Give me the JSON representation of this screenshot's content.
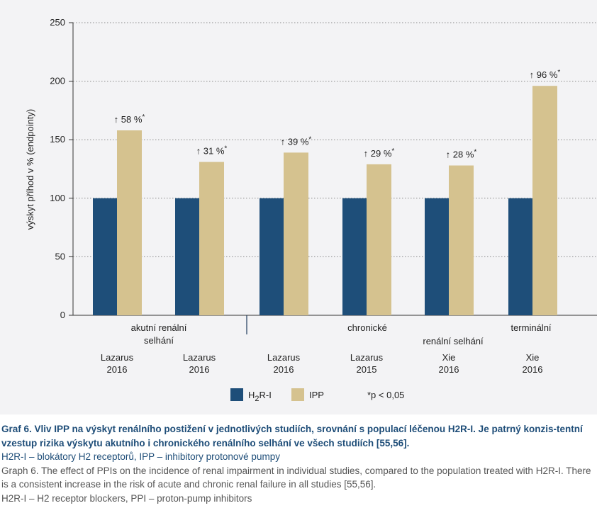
{
  "colors": {
    "h2ri": "#1e4e79",
    "ipp": "#d5c28f",
    "background": "#f3f3f5",
    "caption_title": "#1e4d78",
    "caption_english": "#555555"
  },
  "chart_data": {
    "type": "bar",
    "ylabel": "výskyt příhod v % (endpointy)",
    "ylim": [
      0,
      250
    ],
    "yticks": [
      0,
      50,
      100,
      150,
      200,
      250
    ],
    "grid": "horizontal dotted",
    "categories": [
      {
        "study": "Lazarus",
        "year": "2016"
      },
      {
        "study": "Lazarus",
        "year": "2016"
      },
      {
        "study": "Lazarus",
        "year": "2016"
      },
      {
        "study": "Lazarus",
        "year": "2015"
      },
      {
        "study": "Xie",
        "year": "2016"
      },
      {
        "study": "Xie",
        "year": "2016"
      }
    ],
    "series": [
      {
        "name": "IPP",
        "values": [
          158,
          131,
          139,
          129,
          128,
          196
        ]
      }
    ],
    "reference_values": [
      100,
      100,
      100,
      100,
      100,
      100
    ],
    "data_labels": [
      "58 %",
      "31 %",
      "39 %",
      "29 %",
      "28 %",
      "96 %"
    ],
    "data_label_arrow": "↑",
    "data_label_mark": "*",
    "group_labels": [
      {
        "lines": [
          "akutní renální",
          "selhání"
        ]
      },
      {
        "lines": [
          "chronické"
        ]
      },
      {
        "lines": [
          "renální selhání"
        ]
      },
      {
        "lines": [
          "terminální"
        ]
      }
    ],
    "legend": {
      "h2ri_prefix": "H",
      "h2ri_sub": "2",
      "h2ri_suffix": "R-I",
      "ipp": "IPP",
      "note": "*p < 0,05",
      "placement": "bottom"
    }
  },
  "caption": {
    "title": "Graf 6. Vliv IPP na výskyt renálního postižení v jednotlivých studiích, srovnání s populací léčenou H2R-I. Je patrný konzis-tentní vzestup rizika výskytu akutního i chronického renálního selhání ve všech studiích [55,56].",
    "abbreviations_cz": "H2R-I – blokátory H2 receptorů, IPP – inhibitory protonové pumpy",
    "english": "Graph 6. The effect of PPIs on the incidence of renal impairment in individual studies, compared to the population treated with H2R-I. There is a consistent increase in the risk of acute and chronic renal failure in all studies [55,56].",
    "abbreviations_en": "H2R-I – H2 receptor blockers, PPI – proton-pump inhibitors"
  }
}
